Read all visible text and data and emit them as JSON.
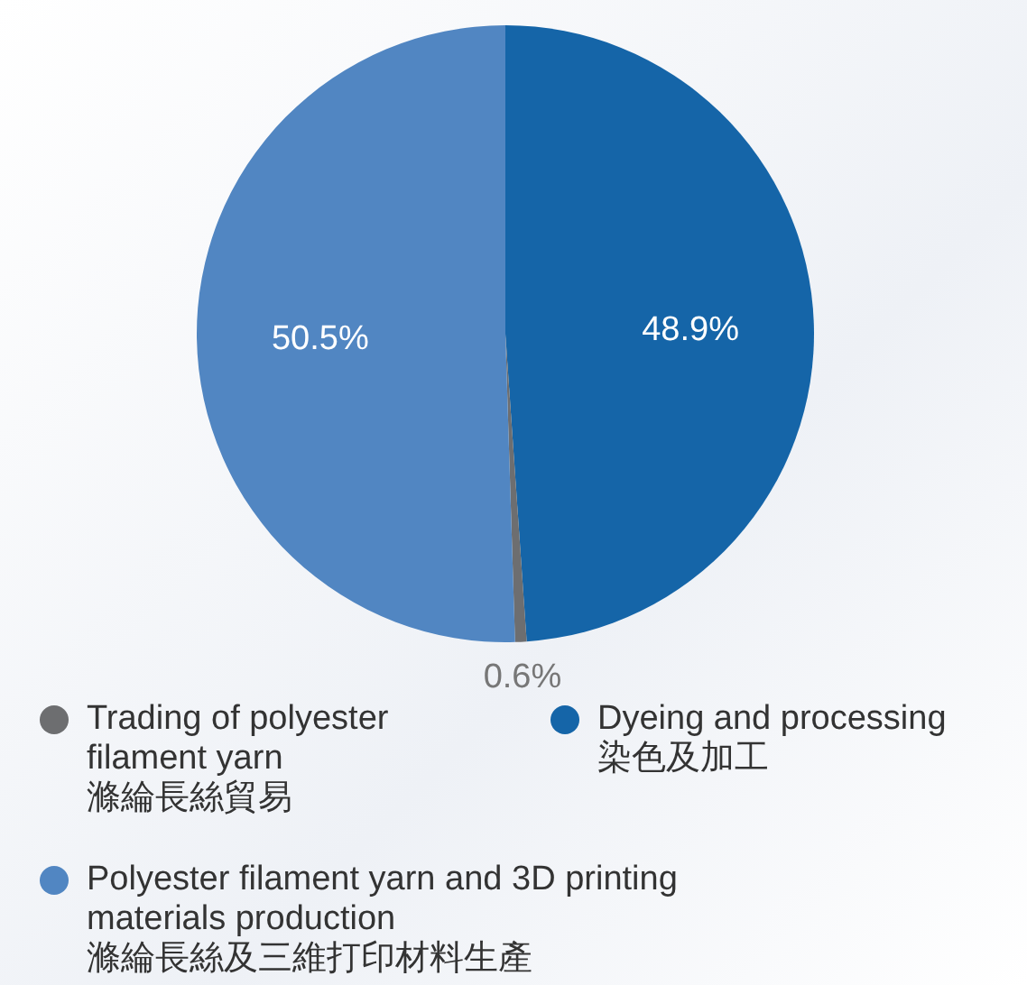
{
  "chart_data": {
    "type": "pie",
    "categories": [
      "Dyeing and processing\n染色及加工",
      "Trading of polyester filament yarn\n滌綸長絲貿易",
      "Polyester filament yarn and 3D printing materials production\n滌綸長絲及三維打印材料生產"
    ],
    "values": [
      48.9,
      0.6,
      50.5
    ],
    "value_labels": [
      "48.9%",
      "0.6%",
      "50.5%"
    ],
    "colors": [
      "#1565a8",
      "#6d6e70",
      "#5186c2"
    ],
    "legend": "bottom"
  }
}
